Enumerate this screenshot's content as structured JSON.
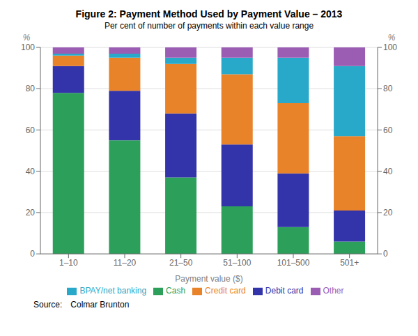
{
  "chart_data": {
    "type": "bar",
    "stacked": true,
    "title": "Figure 2: Payment Method Used by Payment Value – 2013",
    "subtitle": "Per cent of number of payments within each value range",
    "xlabel": "Payment value ($)",
    "ylabel": "%",
    "y2label": "%",
    "categories": [
      "1–10",
      "11–20",
      "21–50",
      "51–100",
      "101–500",
      "501+"
    ],
    "series": [
      {
        "name": "Cash",
        "color": "#2ca05a",
        "values": [
          78,
          55,
          37,
          23,
          13,
          6
        ]
      },
      {
        "name": "Debit card",
        "color": "#3333aa",
        "values": [
          13,
          24,
          31,
          30,
          26,
          15
        ]
      },
      {
        "name": "Credit card",
        "color": "#e8832a",
        "values": [
          5,
          16,
          24,
          34,
          34,
          36
        ]
      },
      {
        "name": "BPAY/net banking",
        "color": "#29a9c9",
        "values": [
          1,
          2,
          3,
          8,
          22,
          34
        ]
      },
      {
        "name": "Other",
        "color": "#9b5cb4",
        "values": [
          3,
          3,
          5,
          5,
          5,
          9
        ]
      }
    ],
    "ylim": [
      0,
      100
    ],
    "yticks": [
      0,
      20,
      40,
      60,
      80,
      100
    ],
    "y2lim": [
      0,
      100
    ],
    "y2ticks": [
      0,
      20,
      40,
      60,
      80,
      100
    ],
    "grid": true,
    "legend": "bottom",
    "annotations": [
      "Source:",
      "Colmar Brunton"
    ]
  }
}
